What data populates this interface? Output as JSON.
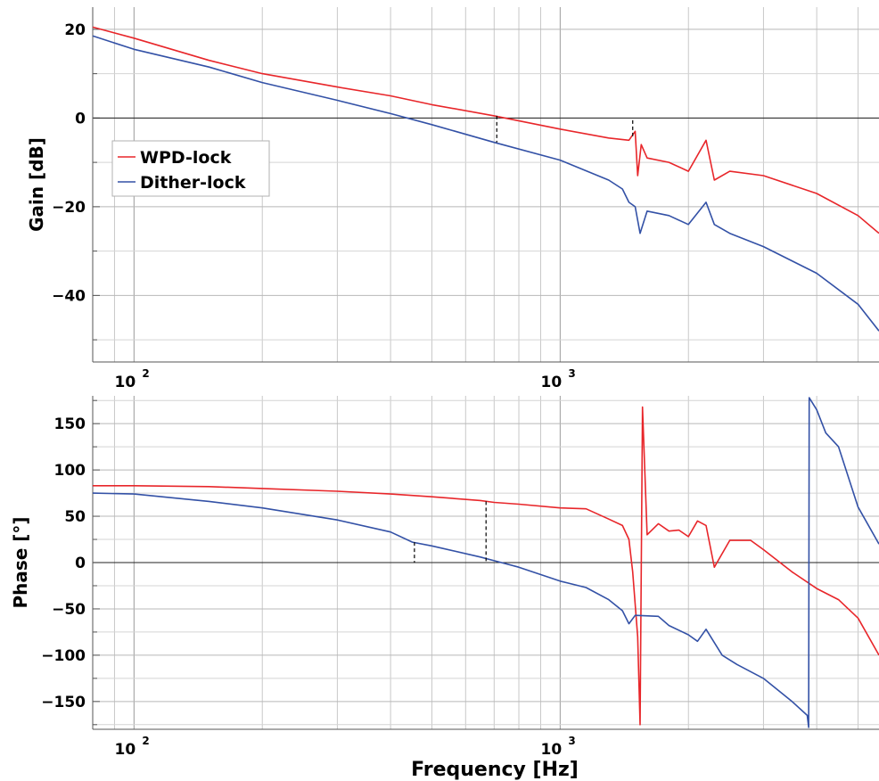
{
  "chart_data": [
    {
      "id": "gain",
      "type": "line",
      "ylabel": "Gain [dB]",
      "xlabel": "",
      "xscale": "log",
      "xlim": [
        80,
        5600
      ],
      "ylim": [
        -55,
        25
      ],
      "yticks": [
        20,
        0,
        -20,
        -40
      ],
      "ytick_labels": [
        "20",
        "0",
        "−20",
        "−40"
      ],
      "xticks": [
        100,
        1000
      ],
      "xtick_labels": [
        "10",
        "10"
      ],
      "xtick_exponents": [
        "2",
        "3"
      ],
      "grid": true,
      "zero_line": true,
      "legend": {
        "position": "left-center",
        "entries": [
          "WPD-lock",
          "Dither-lock"
        ]
      },
      "series": [
        {
          "name": "WPD-lock",
          "color": "#e8262a",
          "points": [
            [
              80,
              20.5
            ],
            [
              100,
              18
            ],
            [
              150,
              13
            ],
            [
              200,
              10
            ],
            [
              300,
              7
            ],
            [
              400,
              5
            ],
            [
              500,
              3
            ],
            [
              700,
              0.5
            ],
            [
              1000,
              -2.5
            ],
            [
              1300,
              -4.5
            ],
            [
              1450,
              -5
            ],
            [
              1500,
              -3
            ],
            [
              1520,
              -13
            ],
            [
              1550,
              -6
            ],
            [
              1600,
              -9
            ],
            [
              1800,
              -10
            ],
            [
              2000,
              -12
            ],
            [
              2200,
              -5
            ],
            [
              2300,
              -14
            ],
            [
              2500,
              -12
            ],
            [
              3000,
              -13
            ],
            [
              4000,
              -17
            ],
            [
              5000,
              -22
            ],
            [
              5600,
              -26
            ]
          ]
        },
        {
          "name": "Dither-lock",
          "color": "#3351a6",
          "points": [
            [
              80,
              18.5
            ],
            [
              100,
              15.5
            ],
            [
              150,
              11.5
            ],
            [
              200,
              8
            ],
            [
              300,
              4
            ],
            [
              400,
              1
            ],
            [
              500,
              -1.5
            ],
            [
              700,
              -5.5
            ],
            [
              1000,
              -9.5
            ],
            [
              1300,
              -14
            ],
            [
              1400,
              -16
            ],
            [
              1450,
              -19
            ],
            [
              1500,
              -20
            ],
            [
              1540,
              -26
            ],
            [
              1600,
              -21
            ],
            [
              1800,
              -22
            ],
            [
              2000,
              -24
            ],
            [
              2200,
              -19
            ],
            [
              2300,
              -24
            ],
            [
              2500,
              -26
            ],
            [
              3000,
              -29
            ],
            [
              4000,
              -35
            ],
            [
              5000,
              -42
            ],
            [
              5600,
              -48
            ]
          ]
        }
      ],
      "markers": [
        {
          "x": 710,
          "y_from": 0.5,
          "y_to": -5.5
        },
        {
          "x": 1480,
          "y_from": -0.5,
          "y_to": -4.5
        }
      ]
    },
    {
      "id": "phase",
      "type": "line",
      "ylabel": "Phase [°]",
      "xlabel": "Frequency [Hz]",
      "xscale": "log",
      "xlim": [
        80,
        5600
      ],
      "ylim": [
        -180,
        180
      ],
      "yticks": [
        150,
        100,
        50,
        0,
        -50,
        -100,
        -150
      ],
      "ytick_labels": [
        "150",
        "100",
        "50",
        "0",
        "−50",
        "−100",
        "−150"
      ],
      "xticks": [
        100,
        1000
      ],
      "xtick_labels": [
        "10",
        "10"
      ],
      "xtick_exponents": [
        "2",
        "3"
      ],
      "grid": true,
      "zero_line": true,
      "series": [
        {
          "name": "WPD-lock",
          "color": "#e8262a",
          "points": [
            [
              80,
              83
            ],
            [
              100,
              83
            ],
            [
              150,
              82
            ],
            [
              200,
              80
            ],
            [
              300,
              77
            ],
            [
              400,
              74
            ],
            [
              500,
              71
            ],
            [
              650,
              67
            ],
            [
              700,
              65
            ],
            [
              800,
              63
            ],
            [
              1000,
              59
            ],
            [
              1150,
              58
            ],
            [
              1300,
              47
            ],
            [
              1400,
              40
            ],
            [
              1450,
              25
            ],
            [
              1480,
              -10
            ],
            [
              1520,
              -80
            ],
            [
              1540,
              -175
            ],
            [
              1560,
              168
            ],
            [
              1600,
              30
            ],
            [
              1700,
              42
            ],
            [
              1800,
              34
            ],
            [
              1900,
              35
            ],
            [
              2000,
              28
            ],
            [
              2100,
              45
            ],
            [
              2200,
              40
            ],
            [
              2300,
              -5
            ],
            [
              2500,
              24
            ],
            [
              2800,
              24
            ],
            [
              3000,
              14
            ],
            [
              3500,
              -10
            ],
            [
              4000,
              -28
            ],
            [
              4500,
              -40
            ],
            [
              5000,
              -60
            ],
            [
              5600,
              -100
            ]
          ]
        },
        {
          "name": "Dither-lock",
          "color": "#3351a6",
          "points": [
            [
              80,
              75
            ],
            [
              100,
              74
            ],
            [
              150,
              66
            ],
            [
              200,
              59
            ],
            [
              300,
              46
            ],
            [
              400,
              33
            ],
            [
              450,
              22
            ],
            [
              500,
              18
            ],
            [
              650,
              6
            ],
            [
              700,
              2
            ],
            [
              800,
              -5
            ],
            [
              1000,
              -20
            ],
            [
              1150,
              -27
            ],
            [
              1300,
              -40
            ],
            [
              1400,
              -52
            ],
            [
              1450,
              -66
            ],
            [
              1500,
              -57
            ],
            [
              1700,
              -58
            ],
            [
              1800,
              -68
            ],
            [
              2000,
              -78
            ],
            [
              2100,
              -85
            ],
            [
              2200,
              -72
            ],
            [
              2400,
              -100
            ],
            [
              2600,
              -110
            ],
            [
              3000,
              -125
            ],
            [
              3500,
              -150
            ],
            [
              3800,
              -165
            ],
            [
              3830,
              -178
            ],
            [
              3840,
              178
            ],
            [
              4000,
              165
            ],
            [
              4200,
              140
            ],
            [
              4500,
              125
            ],
            [
              5000,
              60
            ],
            [
              5600,
              20
            ]
          ]
        }
      ],
      "markers": [
        {
          "x": 455,
          "y_from": 22,
          "y_to": 0
        },
        {
          "x": 670,
          "y_from": 66,
          "y_to": 0
        }
      ]
    }
  ]
}
